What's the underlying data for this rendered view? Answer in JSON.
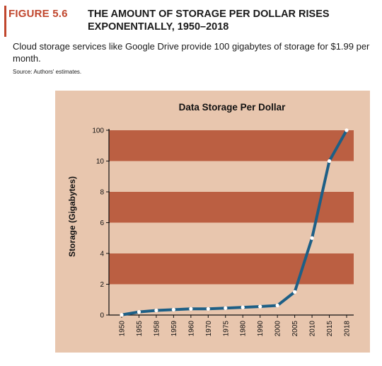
{
  "figure": {
    "label": "FIGURE 5.6",
    "title": "THE AMOUNT OF STORAGE PER DOLLAR RISES EXPONENTIALLY, 1950–2018",
    "caption": "Cloud storage services like Google Drive provide 100 gigabytes of storage for $1.99 per month.",
    "source": "Source: Authors' estimates."
  },
  "colors": {
    "panel_bg": "#e8c6ae",
    "band": "#bb5f42",
    "line": "#1d5f86",
    "point": "#ffffff",
    "accent": "#c0462d"
  },
  "chart_data": {
    "type": "line",
    "title": "Data Storage Per Dollar",
    "xlabel": "",
    "ylabel": "Storage (Gigabytes)",
    "categories": [
      "1950",
      "1955",
      "1958",
      "1959",
      "1960",
      "1970",
      "1975",
      "1980",
      "1990",
      "2000",
      "2005",
      "2010",
      "2015",
      "2018"
    ],
    "y_tick_labels": [
      "0",
      "2",
      "4",
      "6",
      "8",
      "10",
      "100"
    ],
    "series": [
      {
        "values": [
          0.01,
          0.2,
          0.3,
          0.35,
          0.4,
          0.4,
          0.45,
          0.5,
          0.55,
          0.62,
          1.5,
          5,
          10,
          100
        ]
      }
    ],
    "y_scale": "broken: linear 0–10, then break to 100",
    "bands_between": [
      [
        1,
        2
      ],
      [
        3,
        4
      ],
      [
        5,
        6
      ]
    ],
    "grid": false,
    "legend": "none"
  }
}
